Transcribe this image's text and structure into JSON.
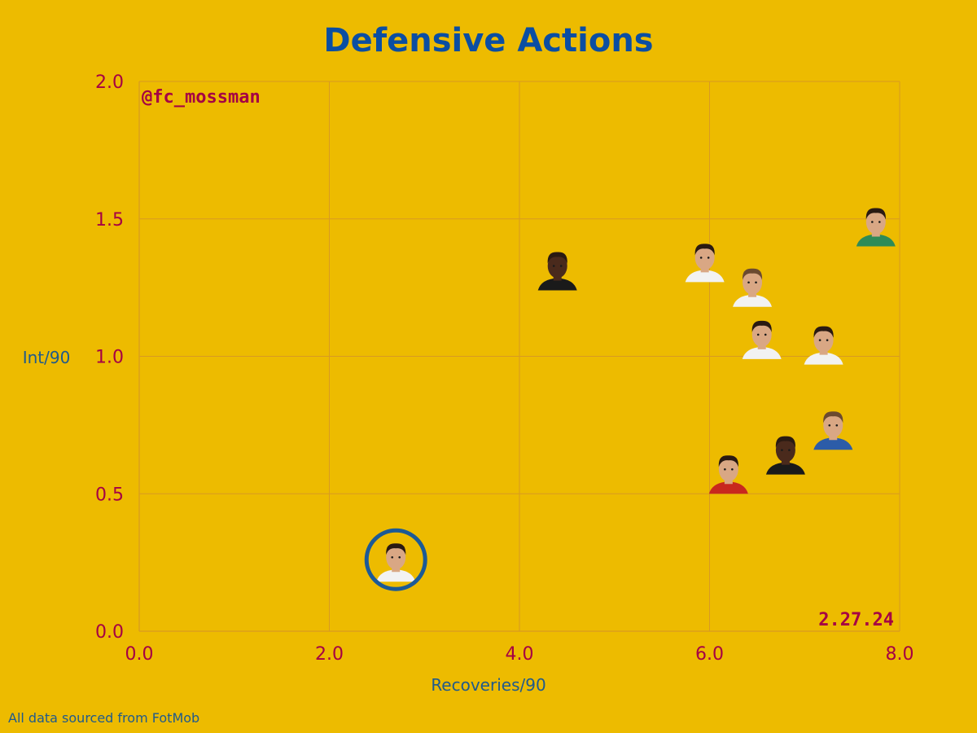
{
  "colors": {
    "background": "#EDBB00",
    "title": "#0B4EA2",
    "tick": "#A50044",
    "grid": "#D89A22",
    "axis_label": "#1F5A8C",
    "annotation": "#A50044",
    "highlight_ring": "#1C5A96",
    "skin": "#D9A784",
    "skin_dark": "#4A2A1C",
    "hair": "#2A1A12",
    "hair_light": "#6B4A30",
    "shirt_red": "#C8281E",
    "shirt_white": "#F2F2F2",
    "shirt_green": "#2E8B57",
    "shirt_blue": "#2C5CA8",
    "shirt_black": "#1A1A1A"
  },
  "chart_data": {
    "type": "scatter",
    "title": "Defensive Actions",
    "xlabel": "Recoveries/90",
    "ylabel": "Int/90",
    "xlim": [
      0,
      8
    ],
    "ylim": [
      0,
      2
    ],
    "xticks": [
      "0.0",
      "2.0",
      "4.0",
      "6.0",
      "8.0"
    ],
    "yticks": [
      "0.0",
      "0.5",
      "1.0",
      "1.5",
      "2.0"
    ],
    "grid": true,
    "points": [
      {
        "x": 2.7,
        "y": 0.26,
        "highlighted": true,
        "skin": "light",
        "hair": "dark",
        "shirt": "white"
      },
      {
        "x": 4.4,
        "y": 1.32,
        "highlighted": false,
        "skin": "dark",
        "hair": "dark",
        "shirt": "black"
      },
      {
        "x": 5.95,
        "y": 1.35,
        "highlighted": false,
        "skin": "light",
        "hair": "dark",
        "shirt": "white"
      },
      {
        "x": 6.45,
        "y": 1.26,
        "highlighted": false,
        "skin": "light",
        "hair": "light",
        "shirt": "white"
      },
      {
        "x": 6.55,
        "y": 1.07,
        "highlighted": false,
        "skin": "light",
        "hair": "dark",
        "shirt": "white"
      },
      {
        "x": 7.2,
        "y": 1.05,
        "highlighted": false,
        "skin": "light",
        "hair": "dark",
        "shirt": "white"
      },
      {
        "x": 7.75,
        "y": 1.48,
        "highlighted": false,
        "skin": "light",
        "hair": "dark",
        "shirt": "green"
      },
      {
        "x": 6.2,
        "y": 0.58,
        "highlighted": false,
        "skin": "light",
        "hair": "dark",
        "shirt": "red"
      },
      {
        "x": 6.8,
        "y": 0.65,
        "highlighted": false,
        "skin": "dark",
        "hair": "dark",
        "shirt": "black"
      },
      {
        "x": 7.3,
        "y": 0.74,
        "highlighted": false,
        "skin": "light",
        "hair": "light",
        "shirt": "blue"
      }
    ]
  },
  "annotations": {
    "handle": "@fc_mossman",
    "date": "2.27.24"
  },
  "footer": {
    "source": "All data sourced from FotMob"
  }
}
